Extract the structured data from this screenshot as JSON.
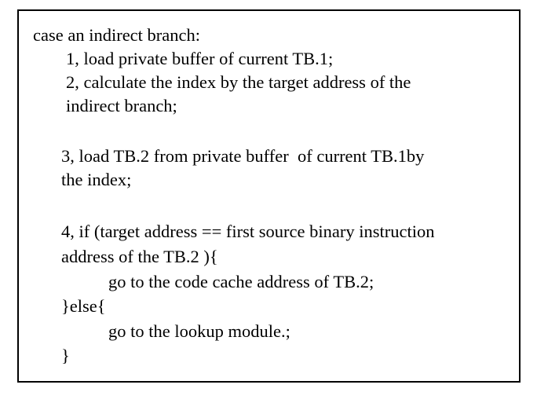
{
  "pseudocode": {
    "l01": "case an indirect branch:",
    "l02": "1, load private buffer of current TB.1;",
    "l03": "2, calculate the index by the target address of the",
    "l04": "indirect branch;",
    "l05": "3, load TB.2 from private buffer  of current TB.1by",
    "l06": "the index;",
    "l07": "4, if (target address == first source binary instruction",
    "l08": "address of the TB.2 ){",
    "l09": "go to the code cache address of TB.2;",
    "l10": "}else{",
    "l11": "go to the lookup module.;",
    "l12": "}"
  }
}
